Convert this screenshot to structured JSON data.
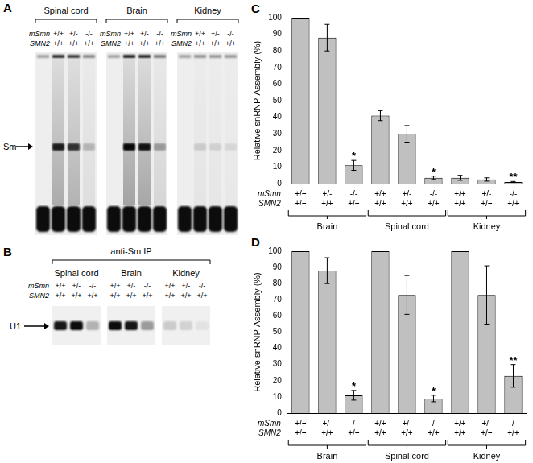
{
  "gels": [
    {
      "panel": "A",
      "band_label": "Sm",
      "row_labels": [
        "mSmn",
        "SMN2"
      ],
      "groups": [
        {
          "name": "Spinal cord",
          "genotypes": [
            [
              "+/+",
              "+/+"
            ],
            [
              "+/-",
              "+/+"
            ],
            [
              "-/-",
              "+/+"
            ]
          ],
          "signal": [
            0,
            0.85,
            0.75,
            0.2
          ]
        },
        {
          "name": "Brain",
          "genotypes": [
            [
              "+/+",
              "+/+"
            ],
            [
              "+/-",
              "+/+"
            ],
            [
              "-/-",
              "+/+"
            ]
          ],
          "signal": [
            0,
            0.95,
            0.9,
            0.3
          ]
        },
        {
          "name": "Kidney",
          "genotypes": [
            [
              "+/+",
              "+/+"
            ],
            [
              "+/-",
              "+/+"
            ],
            [
              "-/-",
              "+/+"
            ]
          ],
          "signal": [
            0,
            0.12,
            0.1,
            0.08
          ]
        }
      ]
    },
    {
      "panel": "B",
      "title": "anti-Sm IP",
      "band_label": "U1",
      "row_labels": [
        "mSmn",
        "SMN2"
      ],
      "groups": [
        {
          "name": "Spinal cord",
          "genotypes": [
            [
              "+/+",
              "+/+"
            ],
            [
              "+/-",
              "+/+"
            ],
            [
              "-/-",
              "+/+"
            ]
          ],
          "signal": [
            0.9,
            0.95,
            0.25
          ]
        },
        {
          "name": "Brain",
          "genotypes": [
            [
              "+/+",
              "+/+"
            ],
            [
              "+/-",
              "+/+"
            ],
            [
              "-/-",
              "+/+"
            ]
          ],
          "signal": [
            0.95,
            0.9,
            0.35
          ]
        },
        {
          "name": "Kidney",
          "genotypes": [
            [
              "+/+",
              "+/+"
            ],
            [
              "+/-",
              "+/+"
            ],
            [
              "-/-",
              "+/+"
            ]
          ],
          "signal": [
            0.15,
            0.12,
            0.05
          ]
        }
      ]
    }
  ],
  "chart_data": [
    {
      "panel": "C",
      "type": "bar",
      "y_label": "Relative snRNP Assembly (%)",
      "row_labels": [
        "mSmn",
        "SMN2"
      ],
      "categories": [
        [
          "+/+",
          "+/+"
        ],
        [
          "+/-",
          "+/+"
        ],
        [
          "-/-",
          "+/+"
        ],
        [
          "+/+",
          "+/+"
        ],
        [
          "+/-",
          "+/+"
        ],
        [
          "-/-",
          "+/+"
        ],
        [
          "+/+",
          "+/+"
        ],
        [
          "+/-",
          "+/+"
        ],
        [
          "-/-",
          "+/+"
        ]
      ],
      "groups": [
        "Brain",
        "Spinal cord",
        "Kidney"
      ],
      "values": [
        100,
        88,
        11,
        41,
        30,
        3.5,
        3.5,
        2.5,
        1
      ],
      "errors": [
        null,
        8,
        3,
        3,
        5,
        1,
        1.5,
        1,
        0.3
      ],
      "annotations": [
        null,
        null,
        "*",
        null,
        null,
        "*",
        null,
        null,
        "**"
      ],
      "color": "#c0c0c0",
      "ylim": [
        0,
        100
      ],
      "yticks": [
        0,
        10,
        20,
        30,
        40,
        50,
        60,
        70,
        80,
        90,
        100
      ],
      "grid": false
    },
    {
      "panel": "D",
      "type": "bar",
      "y_label": "Relative snRNP Assembly (%)",
      "row_labels": [
        "mSmn",
        "SMN2"
      ],
      "categories": [
        [
          "+/+",
          "+/+"
        ],
        [
          "+/-",
          "+/+"
        ],
        [
          "-/-",
          "+/+"
        ],
        [
          "+/+",
          "+/+"
        ],
        [
          "+/-",
          "+/+"
        ],
        [
          "-/-",
          "+/+"
        ],
        [
          "+/+",
          "+/+"
        ],
        [
          "+/-",
          "+/+"
        ],
        [
          "-/-",
          "+/+"
        ]
      ],
      "groups": [
        "Brain",
        "Spinal cord",
        "Kidney"
      ],
      "values": [
        100,
        88,
        11,
        100,
        73,
        9,
        100,
        73,
        23
      ],
      "errors": [
        null,
        8,
        3,
        null,
        12,
        2,
        null,
        18,
        7
      ],
      "annotations": [
        null,
        null,
        "*",
        null,
        null,
        "*",
        null,
        null,
        "**"
      ],
      "color": "#c0c0c0",
      "ylim": [
        0,
        100
      ],
      "yticks": [
        0,
        10,
        20,
        30,
        40,
        50,
        60,
        70,
        80,
        90,
        100
      ],
      "grid": false
    }
  ]
}
